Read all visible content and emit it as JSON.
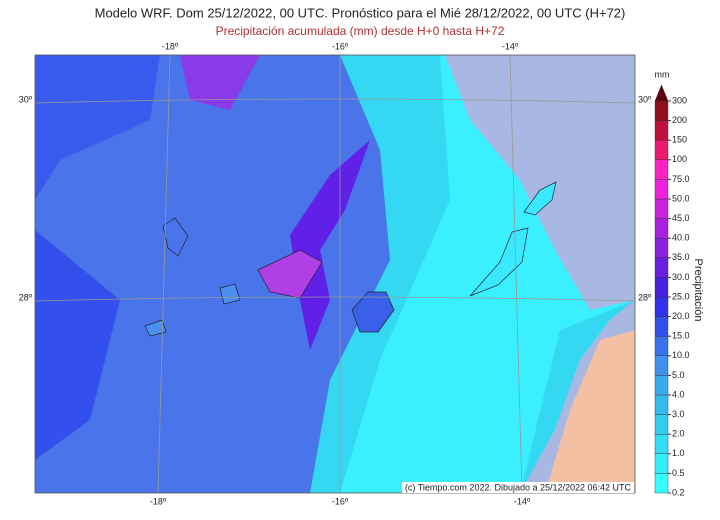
{
  "title": "Modelo WRF. Dom 25/12/2022, 00 UTC. Pronóstico para el Mié 28/12/2022, 00 UTC (H+72)",
  "subtitle": "Precipitación acumulada (mm) desde H+0 hasta H+72",
  "lon_labels_top": [
    "-18º",
    "-16º",
    "-14º"
  ],
  "lon_labels_bottom": [
    "-18º",
    "-16º",
    "-14º"
  ],
  "lat_labels": [
    "30º",
    "28º"
  ],
  "credit": "(c) Tiempo.com 2022. Dibujado a 25/12/2022 06:42 UTC",
  "colorbar": {
    "title": "Precipitación",
    "unit": "mm",
    "levels": [
      0.2,
      0.5,
      {
        "value": 1,
        "label": "1.0"
      },
      {
        "value": 2,
        "label": "2.0"
      },
      {
        "value": 3,
        "label": "3.0"
      },
      {
        "value": 4,
        "label": "4.0"
      },
      {
        "value": 5,
        "label": "5.0"
      },
      {
        "value": 10,
        "label": "10.0"
      },
      {
        "value": 15,
        "label": "15.0"
      },
      {
        "value": 20,
        "label": "20.0"
      },
      {
        "value": 25,
        "label": "25.0"
      },
      {
        "value": 30,
        "label": "30.0"
      },
      {
        "value": 35,
        "label": "35.0"
      },
      {
        "value": 40,
        "label": "40.0"
      },
      {
        "value": 45,
        "label": "45.0"
      },
      {
        "value": 50,
        "label": "50.0"
      },
      {
        "value": 75,
        "label": "75.0"
      },
      100,
      150,
      200,
      300
    ],
    "colors": [
      "#33ffff",
      "#33eeff",
      "#33ddf5",
      "#33ccee",
      "#33bbee",
      "#3aaaee",
      "#4090ee",
      "#3a70ee",
      "#3050ee",
      "#3030ee",
      "#4a20e0",
      "#6a20e0",
      "#8a20e0",
      "#aa20e0",
      "#cc20e0",
      "#ee20e0",
      "#ff20c0",
      "#ee1a70",
      "#c01040",
      "#901020"
    ],
    "over_color": "#600010"
  }
}
